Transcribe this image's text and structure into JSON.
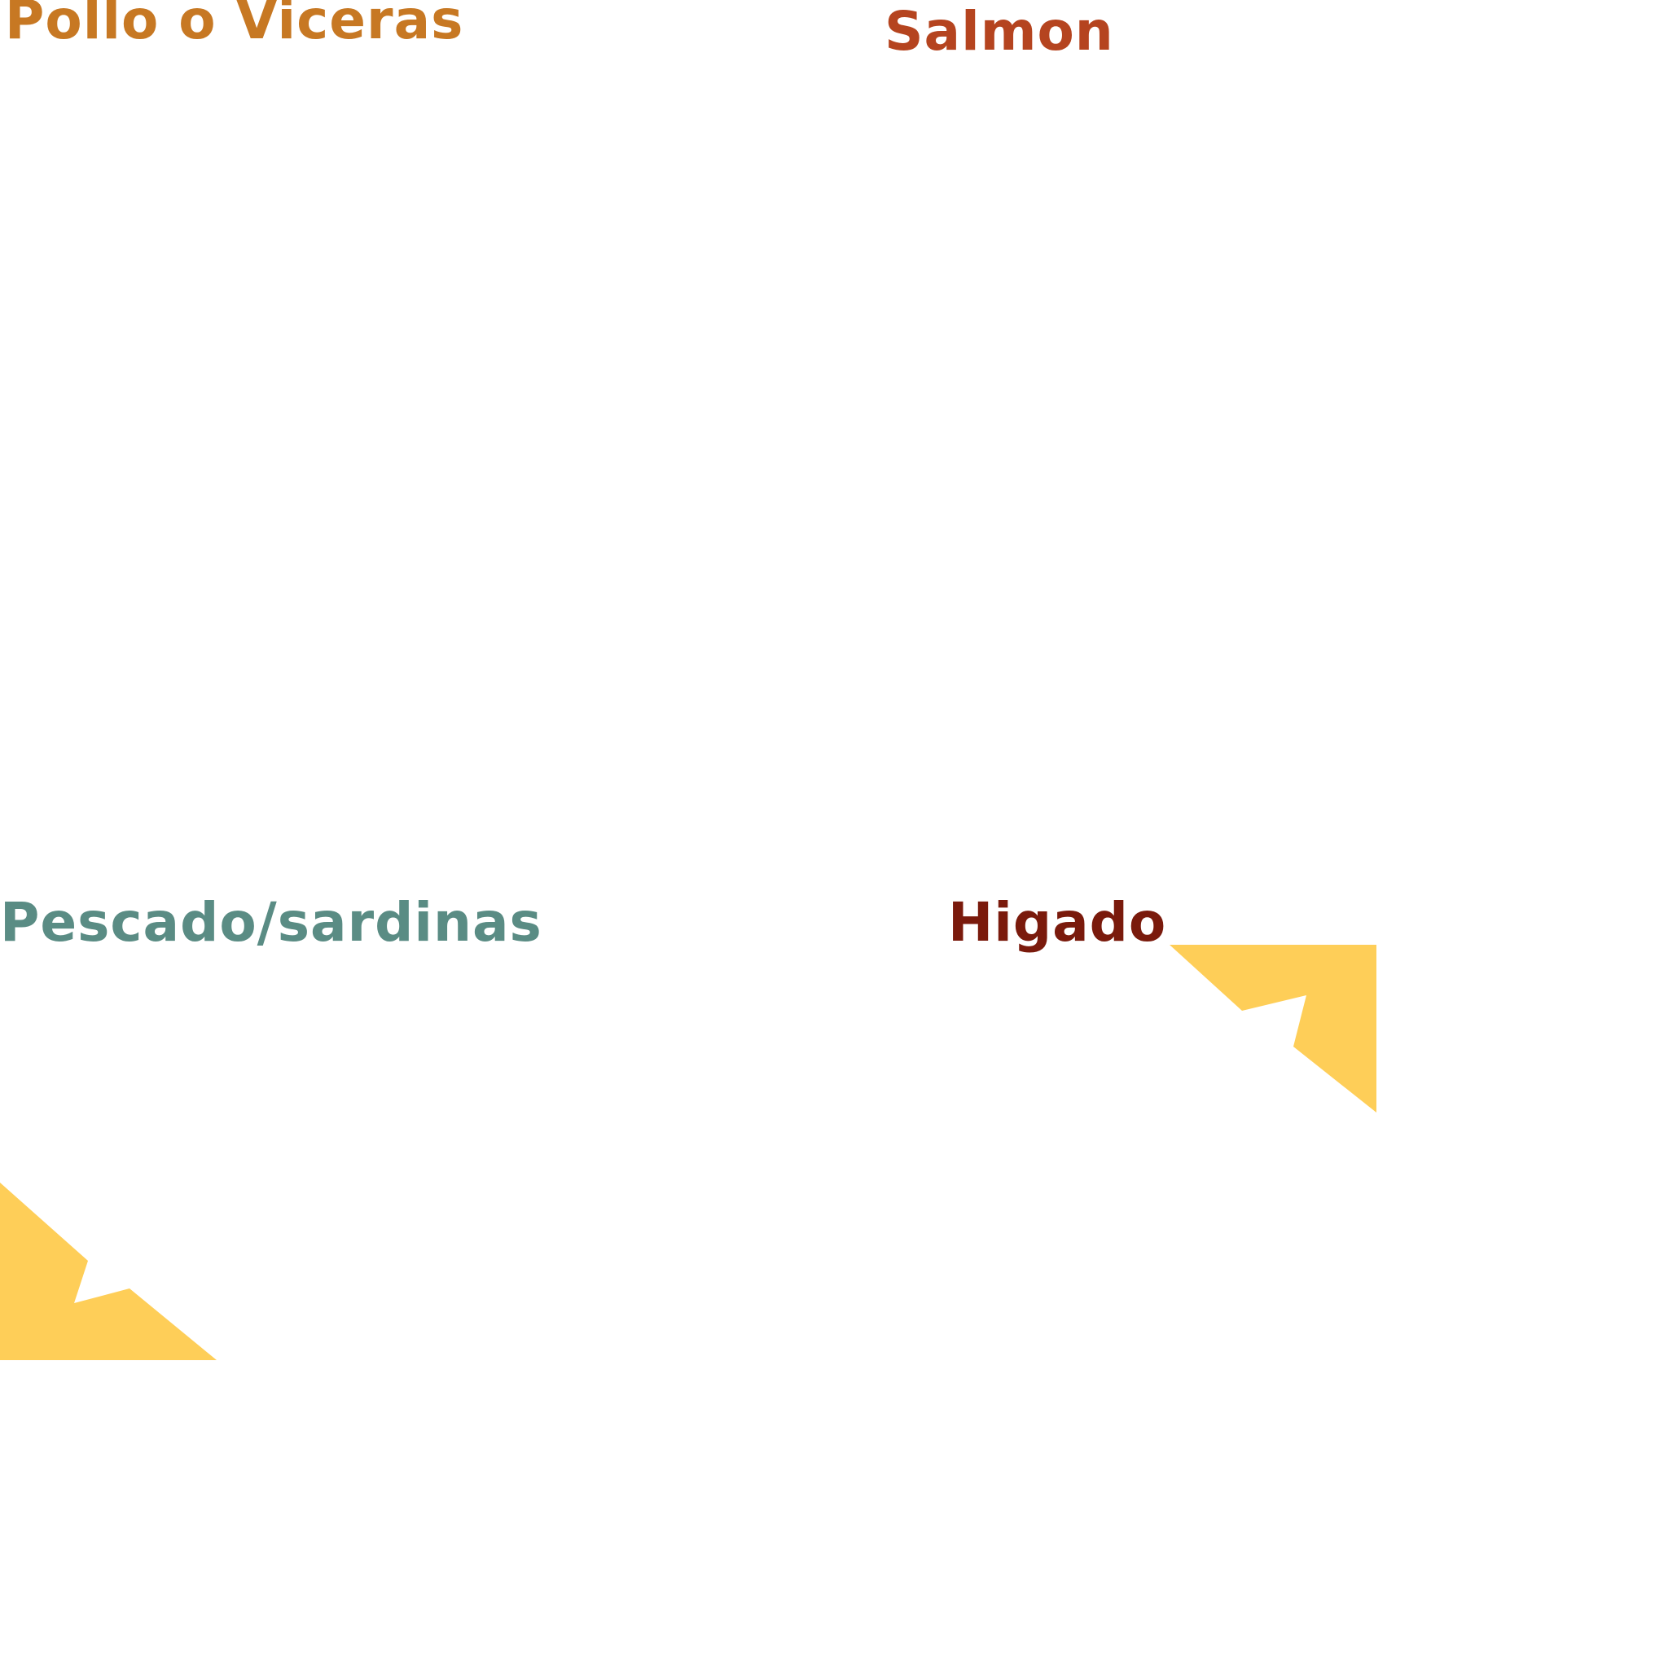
{
  "labels": {
    "pollo": {
      "text": "Pollo o Viceras",
      "color": "#C77823"
    },
    "salmon": {
      "text": "Salmon",
      "color": "#B5441F"
    },
    "pescado": {
      "text": "Pescado/sardinas",
      "color": "#5A8C84"
    },
    "higado": {
      "text": "Higado",
      "color": "#7A1A0C"
    }
  },
  "decorations": {
    "color": "#FECE58",
    "shapes": [
      "corner-arrow-top-right",
      "corner-arrow-bottom-left"
    ]
  }
}
